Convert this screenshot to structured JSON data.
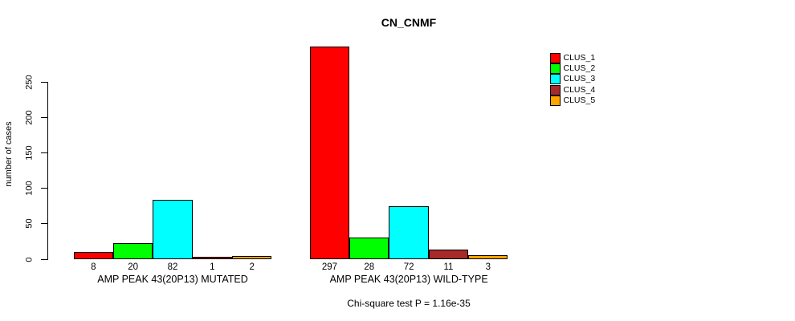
{
  "title": "CN_CNMF",
  "footnote": "Chi-square test P = 1.16e-35",
  "chart_data": {
    "type": "bar",
    "title": "CN_CNMF",
    "xlabel": "",
    "ylabel": "number of cases",
    "ylim": [
      0,
      250
    ],
    "yticks": [
      0,
      50,
      100,
      150,
      200,
      250
    ],
    "grid": false,
    "legend_position": "right-top",
    "categories": [
      "AMP PEAK 43(20P13) MUTATED",
      "AMP PEAK 43(20P13) WILD-TYPE"
    ],
    "series": [
      {
        "name": "CLUS_1",
        "color": "#ff0000",
        "values": [
          8,
          297
        ]
      },
      {
        "name": "CLUS_2",
        "color": "#00ff00",
        "values": [
          20,
          28
        ]
      },
      {
        "name": "CLUS_3",
        "color": "#00ffff",
        "values": [
          82,
          72
        ]
      },
      {
        "name": "CLUS_4",
        "color": "#a52a2a",
        "values": [
          1,
          11
        ]
      },
      {
        "name": "CLUS_5",
        "color": "#ffa500",
        "values": [
          2,
          3
        ]
      }
    ],
    "bar_value_labels": [
      [
        8,
        20,
        82,
        1,
        2
      ],
      [
        297,
        28,
        72,
        11,
        3
      ]
    ],
    "annotation": "Chi-square test P = 1.16e-35"
  },
  "legend": {
    "entries": [
      {
        "label": "CLUS_1",
        "color": "#ff0000"
      },
      {
        "label": "CLUS_2",
        "color": "#00ff00"
      },
      {
        "label": "CLUS_3",
        "color": "#00ffff"
      },
      {
        "label": "CLUS_4",
        "color": "#a52a2a"
      },
      {
        "label": "CLUS_5",
        "color": "#ffa500"
      }
    ]
  }
}
